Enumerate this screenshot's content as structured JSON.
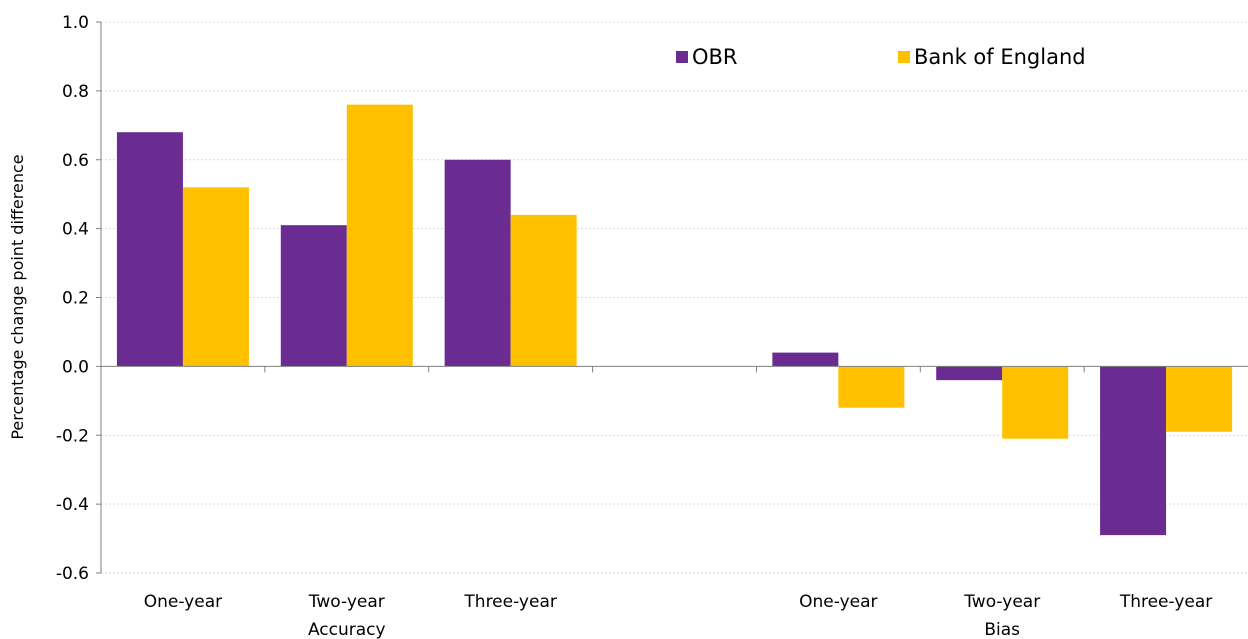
{
  "chart_data": {
    "type": "bar",
    "title": "",
    "xlabel": "",
    "ylabel": "Percentage change point difference",
    "ylim": [
      -0.6,
      1.0
    ],
    "yticks": [
      "1.0",
      "0.8",
      "0.6",
      "0.4",
      "0.2",
      "0.0",
      "-0.2",
      "-0.4",
      "-0.6"
    ],
    "ytick_values": [
      1.0,
      0.8,
      0.6,
      0.4,
      0.2,
      0.0,
      -0.2,
      -0.4,
      -0.6
    ],
    "grid": true,
    "legend_position": "top-right",
    "categories": [
      "One-year",
      "Two-year",
      "Three-year",
      "",
      "One-year",
      "Two-year",
      "Three-year"
    ],
    "groups": [
      {
        "label": "Accuracy",
        "category_index": 1
      },
      {
        "label": "Bias",
        "category_index": 5
      }
    ],
    "series": [
      {
        "name": "OBR",
        "color": "#6a2c91",
        "values": [
          0.68,
          0.41,
          0.6,
          null,
          0.04,
          -0.04,
          -0.49
        ]
      },
      {
        "name": "Bank of England",
        "color": "#ffc000",
        "values": [
          0.52,
          0.76,
          0.44,
          null,
          -0.12,
          -0.21,
          -0.19
        ]
      }
    ]
  }
}
